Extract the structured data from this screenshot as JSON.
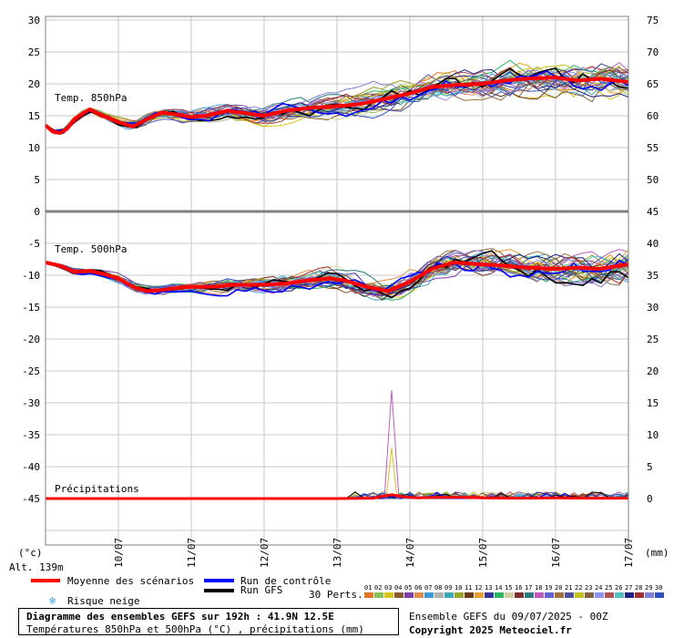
{
  "chart_data": {
    "type": "line",
    "x_ticks": [
      "10/07",
      "11/07",
      "12/07",
      "13/07",
      "14/07",
      "15/07",
      "16/07",
      "17/07"
    ],
    "left_axis_unit": "(°c)",
    "right_axis_unit": "(mm)",
    "altitude_label": "Alt. 139m",
    "temp850": {
      "label": "Temp. 850hPa",
      "y_ticks": [
        30,
        25,
        20,
        15,
        10,
        5,
        0
      ],
      "right_ticks": [
        75,
        70,
        65,
        60,
        55,
        50,
        45
      ],
      "mean": [
        [
          0,
          13.5
        ],
        [
          0.1,
          12.5
        ],
        [
          0.2,
          12.3
        ],
        [
          0.3,
          13.0
        ],
        [
          0.4,
          14.5
        ],
        [
          0.6,
          16.0
        ],
        [
          0.8,
          15.0
        ],
        [
          1.0,
          14.0
        ],
        [
          1.2,
          13.3
        ],
        [
          1.4,
          14.5
        ],
        [
          1.6,
          15.5
        ],
        [
          1.8,
          15.2
        ],
        [
          2.0,
          14.8
        ],
        [
          2.2,
          15.0
        ],
        [
          2.5,
          15.8
        ],
        [
          2.8,
          15.3
        ],
        [
          3.0,
          15.0
        ],
        [
          3.3,
          15.8
        ],
        [
          3.6,
          16.2
        ],
        [
          4.0,
          16.5
        ],
        [
          4.3,
          16.8
        ],
        [
          4.6,
          17.5
        ],
        [
          5.0,
          18.5
        ],
        [
          5.3,
          19.5
        ],
        [
          5.6,
          19.8
        ],
        [
          6.0,
          20.0
        ],
        [
          6.3,
          20.5
        ],
        [
          6.6,
          20.8
        ],
        [
          7.0,
          21.0
        ],
        [
          7.3,
          20.5
        ],
        [
          7.6,
          20.8
        ],
        [
          8.0,
          20.3
        ]
      ]
    },
    "temp500": {
      "label": "Temp. 500hPa",
      "y_ticks": [
        -5,
        -10,
        -15,
        -20,
        -25,
        -30,
        -35,
        -40,
        -45
      ],
      "right_ticks": [
        40,
        35,
        30,
        25,
        20,
        15,
        10,
        5,
        0
      ],
      "mean": [
        [
          0,
          -8.0
        ],
        [
          0.2,
          -8.5
        ],
        [
          0.4,
          -9.5
        ],
        [
          0.6,
          -9.3
        ],
        [
          0.8,
          -9.8
        ],
        [
          1.0,
          -10.5
        ],
        [
          1.2,
          -11.8
        ],
        [
          1.4,
          -12.5
        ],
        [
          1.6,
          -12.3
        ],
        [
          1.8,
          -12.0
        ],
        [
          2.0,
          -11.8
        ],
        [
          2.3,
          -11.8
        ],
        [
          2.6,
          -11.5
        ],
        [
          3.0,
          -11.5
        ],
        [
          3.3,
          -11.3
        ],
        [
          3.6,
          -10.8
        ],
        [
          3.9,
          -10.5
        ],
        [
          4.1,
          -10.8
        ],
        [
          4.4,
          -11.8
        ],
        [
          4.7,
          -12.5
        ],
        [
          5.0,
          -11.0
        ],
        [
          5.3,
          -9.0
        ],
        [
          5.6,
          -8.0
        ],
        [
          6.0,
          -8.3
        ],
        [
          6.3,
          -8.5
        ],
        [
          6.6,
          -8.8
        ],
        [
          7.0,
          -9.0
        ],
        [
          7.3,
          -8.8
        ],
        [
          7.6,
          -9.0
        ],
        [
          8.0,
          -8.3
        ]
      ]
    },
    "precipitation": {
      "label": "Précipitations",
      "mean": [
        [
          0,
          0
        ],
        [
          4.0,
          0
        ],
        [
          4.5,
          0.05
        ],
        [
          4.6,
          0.3
        ],
        [
          4.75,
          0.6
        ],
        [
          4.9,
          0.3
        ],
        [
          5.1,
          0.1
        ],
        [
          5.4,
          0.2
        ],
        [
          5.7,
          0.2
        ],
        [
          6.0,
          0.1
        ],
        [
          6.5,
          0.05
        ],
        [
          7.0,
          0.1
        ],
        [
          7.5,
          0.05
        ],
        [
          8.0,
          0.05
        ]
      ],
      "spike_x": 4.75,
      "spike_max": 17.0
    },
    "legend": {
      "mean": "Moyenne des scénarios",
      "control": "Run de contrôle",
      "gfs": "Run GFS",
      "snow": "Risque neige",
      "perts": "30 Perts.",
      "mean_color": "#ff0000",
      "control_color": "#0000ff",
      "gfs_color": "#000000",
      "snow_color": "#4aa3df"
    },
    "pert_labels": [
      "01",
      "02",
      "03",
      "04",
      "05",
      "06",
      "07",
      "08",
      "09",
      "10",
      "11",
      "12",
      "13",
      "14",
      "15",
      "16",
      "17",
      "18",
      "19",
      "20",
      "21",
      "22",
      "23",
      "24",
      "25",
      "26",
      "27",
      "28",
      "29",
      "30"
    ],
    "pert_colors": [
      "#e0782a",
      "#88c057",
      "#d9c31b",
      "#8a5a2b",
      "#7b3fa8",
      "#e08a4a",
      "#3c9ad8",
      "#b0b0b0",
      "#3aa8b0",
      "#9aa62c",
      "#6a3a1a",
      "#e8a030",
      "#333399",
      "#27b560",
      "#d0d0a0",
      "#7a2e2e",
      "#2a7b7b",
      "#c05ac0",
      "#6060d0",
      "#a07040",
      "#5050a0",
      "#c0c020",
      "#806040",
      "#9090f0",
      "#b05050",
      "#50c0c0",
      "#202080",
      "#a03030",
      "#8080d0",
      "#3050c0"
    ],
    "info": {
      "title": "Diagramme des ensembles GEFS sur 192h : 41.9N 12.5E",
      "subtitle": "Températures 850hPa et 500hPa (°C) , précipitations (mm)",
      "run": "Ensemble GEFS du 09/07/2025 - 00Z",
      "copyright": "Copyright 2025 Meteociel.fr"
    }
  }
}
